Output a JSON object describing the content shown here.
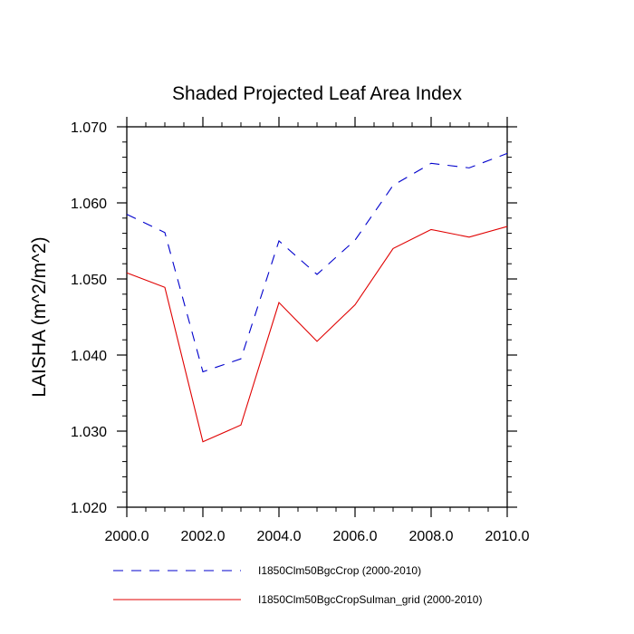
{
  "chart_data": {
    "type": "line",
    "title": "Shaded Projected Leaf Area Index",
    "xlabel": "",
    "ylabel": "LAISHA  (m^2/m^2)",
    "xlim": [
      2000,
      2010
    ],
    "ylim": [
      1.02,
      1.07
    ],
    "x": [
      2000,
      2001,
      2002,
      2003,
      2004,
      2005,
      2006,
      2007,
      2008,
      2009,
      2010
    ],
    "x_ticks": [
      2000,
      2002,
      2004,
      2006,
      2008,
      2010
    ],
    "x_tick_labels": [
      "2000.0",
      "2002.0",
      "2004.0",
      "2006.0",
      "2008.0",
      "2010.0"
    ],
    "y_ticks": [
      1.02,
      1.03,
      1.04,
      1.05,
      1.06,
      1.07
    ],
    "y_tick_labels": [
      "1.020",
      "1.030",
      "1.040",
      "1.050",
      "1.060",
      "1.070"
    ],
    "grid": false,
    "legend_position": "bottom",
    "series": [
      {
        "name": "I1850Clm50BgcCrop (2000-2010)",
        "color": "#0000cc",
        "dash": "dashed",
        "values": [
          1.0585,
          1.0561,
          1.0378,
          1.0395,
          1.055,
          1.0506,
          1.0551,
          1.0623,
          1.0652,
          1.0646,
          1.0665
        ]
      },
      {
        "name": "I1850Clm50BgcCropSulman_grid (2000-2010)",
        "color": "#e00000",
        "dash": "solid",
        "values": [
          1.0508,
          1.0489,
          1.0286,
          1.0308,
          1.0469,
          1.0418,
          1.0466,
          1.054,
          1.0565,
          1.0555,
          1.0569
        ]
      }
    ]
  }
}
